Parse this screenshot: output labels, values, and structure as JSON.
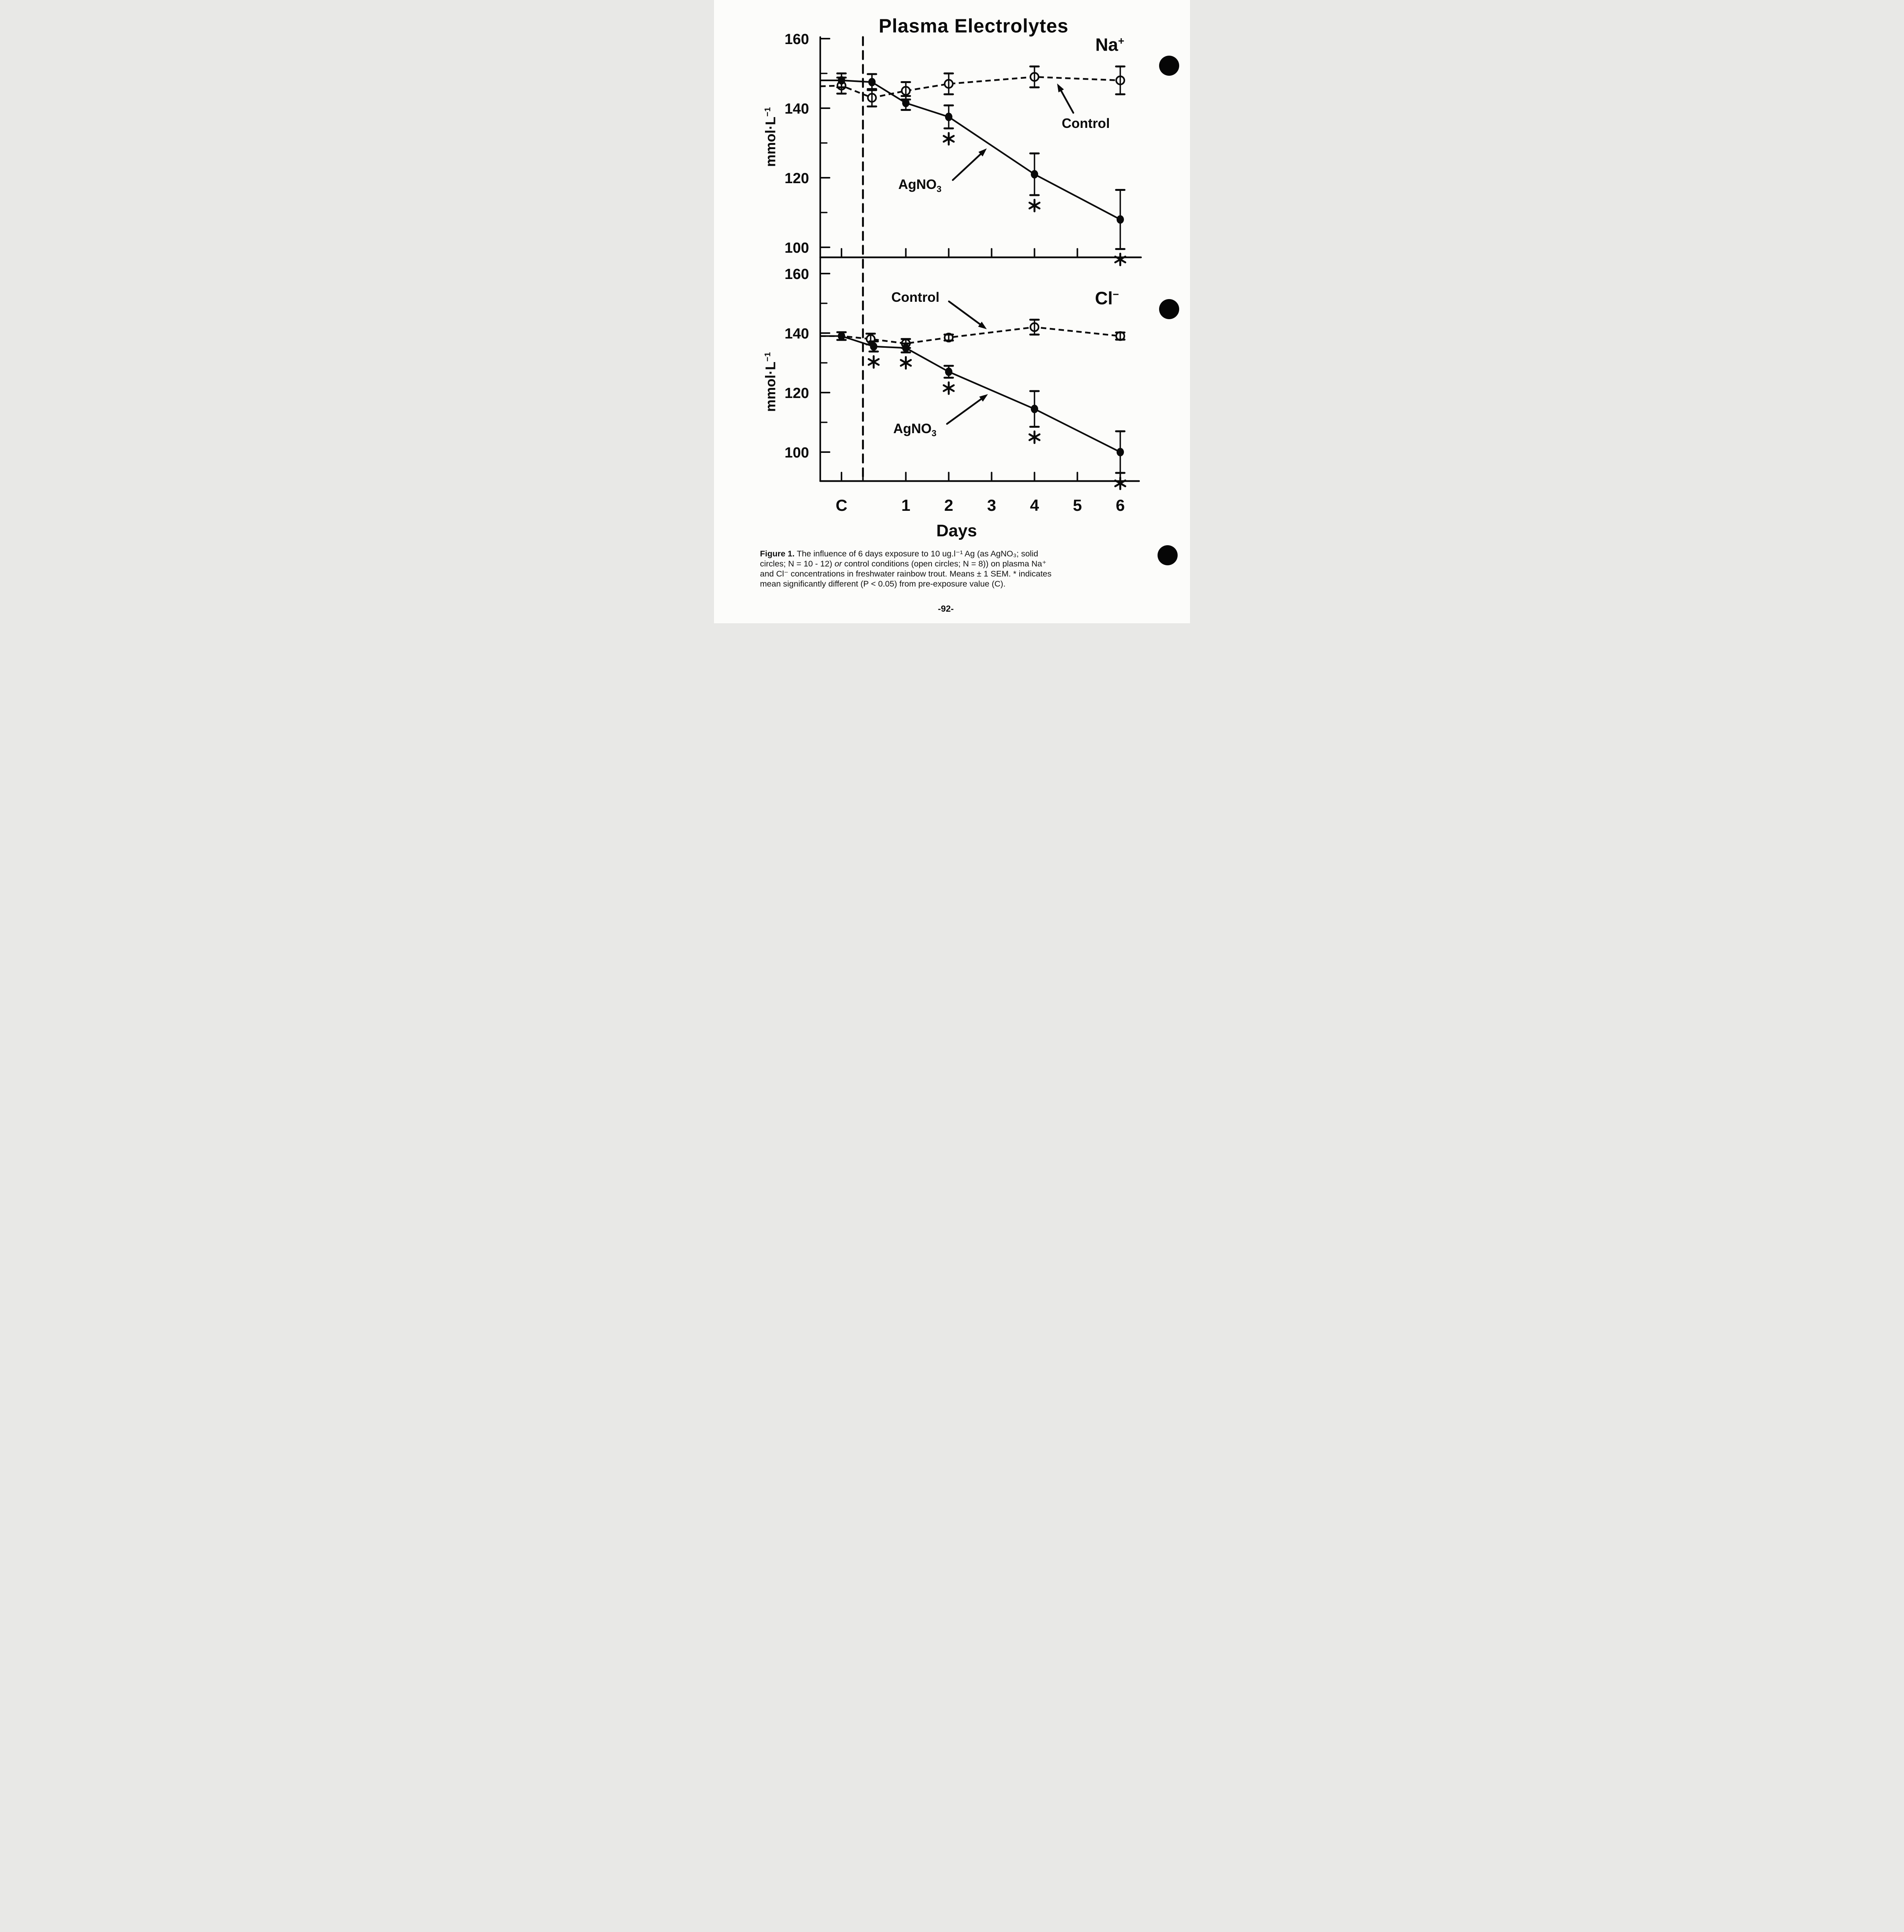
{
  "figure": {
    "title": "Plasma Electrolytes",
    "na_label": {
      "base": "Na",
      "sup": "+"
    },
    "cl_label": {
      "base": "Cl",
      "sup": "−"
    },
    "ylabel": {
      "base": "mmol·L",
      "sup": "−1"
    },
    "xlabel": "Days",
    "control_label_na": "Control",
    "control_label_cl": "Control",
    "agno3_label_na": {
      "base": "AgNO",
      "sub": "3"
    },
    "agno3_label_cl": {
      "base": "AgNO",
      "sub": "3"
    },
    "ink_color": "#0a0a0a",
    "paper_color": "#fcfcfa"
  },
  "chart_data": [
    {
      "type": "line",
      "panel": "Na+",
      "ylabel": "mmol·L-1",
      "ylim": [
        97,
        161
      ],
      "yticks_labeled": [
        160,
        140,
        120,
        100
      ],
      "yticks_minor": [
        150,
        130,
        110
      ],
      "x_axis": {
        "label": "Days",
        "ticks": [
          "C",
          "1",
          "2",
          "3",
          "4",
          "5",
          "6"
        ],
        "c_position_days": -0.5,
        "exposure_start_day": 0
      },
      "series": [
        {
          "name": "Control",
          "marker": "open-circle",
          "line": "dashed",
          "axis_start": 146.3,
          "x_days": [
            -0.5,
            0.21,
            1,
            2,
            4,
            6
          ],
          "y": [
            146.5,
            143,
            145,
            147,
            149,
            148
          ],
          "sem": [
            2.3,
            2.5,
            2.5,
            3,
            3,
            4
          ],
          "significant": [
            false,
            false,
            false,
            false,
            false,
            false
          ]
        },
        {
          "name": "AgNO3",
          "marker": "filled-circle",
          "line": "solid",
          "axis_start": 148,
          "x_days": [
            -0.5,
            0.21,
            1,
            2,
            4,
            6
          ],
          "y": [
            148,
            147.5,
            141.5,
            137.5,
            121,
            108
          ],
          "sem": [
            2,
            2.3,
            2,
            3.3,
            6,
            8.5
          ],
          "significant": [
            false,
            false,
            false,
            true,
            true,
            true
          ]
        }
      ]
    },
    {
      "type": "line",
      "panel": "Cl-",
      "ylabel": "mmol·L-1",
      "ylim": [
        90.5,
        165
      ],
      "yticks_labeled": [
        160,
        140,
        120,
        100
      ],
      "yticks_minor": [
        150,
        130,
        110
      ],
      "x_axis": {
        "label": "Days",
        "ticks": [
          "C",
          "1",
          "2",
          "3",
          "4",
          "5",
          "6"
        ],
        "c_position_days": -0.5,
        "exposure_start_day": 0
      },
      "series": [
        {
          "name": "Control",
          "marker": "open-circle",
          "line": "dashed",
          "axis_start": 139,
          "x_days": [
            -0.5,
            0.18,
            1,
            2,
            4,
            6
          ],
          "y": [
            139,
            138,
            136.5,
            138.5,
            142,
            139
          ],
          "sem": [
            0,
            1.8,
            1.5,
            1,
            2.5,
            1.2
          ],
          "markers_shown": [
            false,
            true,
            true,
            true,
            true,
            true
          ],
          "significant": [
            false,
            false,
            false,
            false,
            false,
            false
          ]
        },
        {
          "name": "AgNO3",
          "marker": "filled-circle",
          "line": "solid",
          "axis_start": 139,
          "x_days": [
            -0.5,
            0.25,
            1,
            2,
            4,
            6
          ],
          "y": [
            139,
            135.5,
            135,
            127,
            114.5,
            100
          ],
          "sem": [
            1.3,
            1.7,
            1.5,
            2,
            6,
            7
          ],
          "significant": [
            false,
            true,
            true,
            true,
            true,
            true
          ]
        }
      ]
    }
  ],
  "caption": {
    "lines": [
      {
        "bold": "Figure 1.",
        "text": " The influence of 6 days exposure to 10 ug.l⁻¹ Ag (as AgNO₃; solid"
      },
      {
        "pre": "circles; N = 10 - 12) ",
        "italic": "or",
        "post": " control conditions (open circles; N = 8)) on plasma Na⁺"
      },
      {
        "text": "and Cl⁻ concentrations in freshwater rainbow trout.  Means ± 1 SEM.  * indicates"
      },
      {
        "text": "mean significantly different (P < 0.05) from pre-exposure value (C)."
      }
    ]
  },
  "page_number": "-92-"
}
